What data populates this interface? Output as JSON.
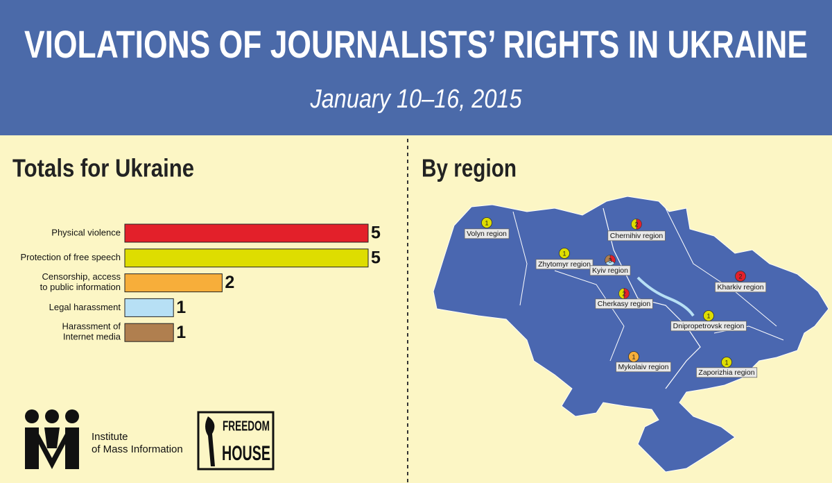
{
  "header": {
    "title": "VIOLATIONS OF JOURNALISTS’ RIGHTS IN UKRAINE",
    "subtitle": "January 10–16, 2015"
  },
  "chart_data": {
    "type": "hbar",
    "title": "Totals for Ukraine",
    "categories": [
      "Physical violence",
      "Protection of free speech",
      "Censorship, access\nto public information",
      "Legal harassment",
      "Harassment of\nInternet media"
    ],
    "values": [
      5,
      5,
      2,
      1,
      1
    ],
    "colors": [
      "#e3202a",
      "#dedd00",
      "#f7ae3a",
      "#b7e0f5",
      "#b07f4f"
    ],
    "xlim": [
      0,
      5
    ]
  },
  "map": {
    "title": "By region",
    "regions": [
      {
        "name": "Volyn region",
        "count": 1,
        "colors": [
          "#dedd00"
        ]
      },
      {
        "name": "Chernihiv region",
        "count": 2,
        "colors": [
          "#e3202a",
          "#dedd00"
        ]
      },
      {
        "name": "Zhytomyr region",
        "count": 1,
        "colors": [
          "#dedd00"
        ]
      },
      {
        "name": "Kyiv region",
        "count": 3,
        "colors": [
          "#e3202a",
          "#b7e0f5",
          "#b07f4f"
        ]
      },
      {
        "name": "Kharkiv region",
        "count": 2,
        "colors": [
          "#e3202a"
        ]
      },
      {
        "name": "Cherkasy region",
        "count": 2,
        "colors": [
          "#e3202a",
          "#dedd00"
        ]
      },
      {
        "name": "Dnipropetrovsk region",
        "count": 1,
        "colors": [
          "#dedd00"
        ]
      },
      {
        "name": "Mykolaiv region",
        "count": 1,
        "colors": [
          "#f7ae3a"
        ]
      },
      {
        "name": "Zaporizhia region",
        "count": 1,
        "colors": [
          "#dedd00"
        ]
      }
    ]
  },
  "logos": {
    "imi": [
      "Institute",
      "of Mass Information"
    ],
    "freedom_house": [
      "FREEDOM",
      "HOUSE"
    ]
  }
}
